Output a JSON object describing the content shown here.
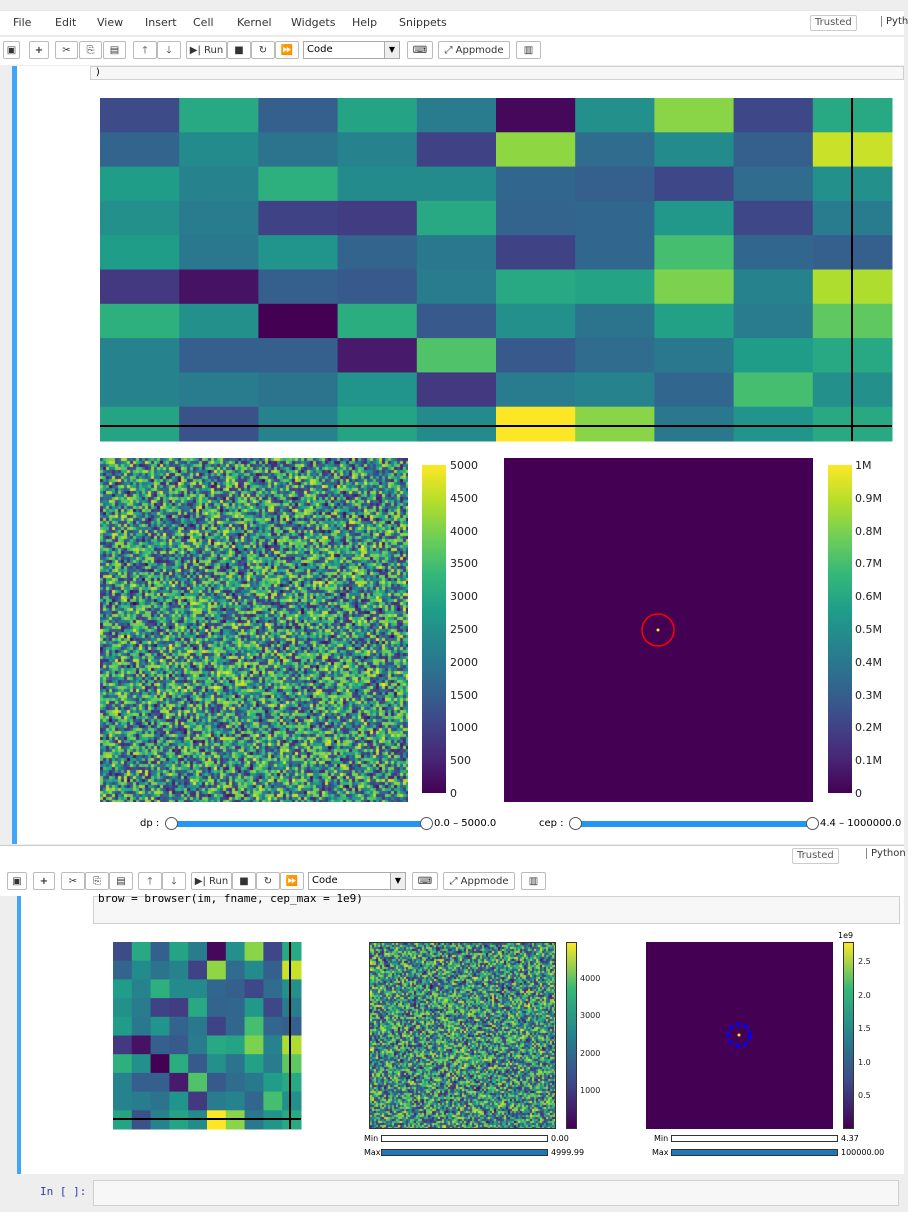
{
  "menubar": {
    "items": [
      "File",
      "Edit",
      "View",
      "Insert",
      "Cell",
      "Kernel",
      "Widgets",
      "Help",
      "Snippets"
    ],
    "trusted_label": "Trusted",
    "kernel_label": "Pyth"
  },
  "toolbar": {
    "run_label": "Run",
    "cell_type": "Code",
    "appmode_label": "Appmode"
  },
  "cell1": {
    "code_text": ")",
    "heatmap": {
      "rows": [
        [
          0.23,
          0.6,
          0.3,
          0.58,
          0.42,
          0.02,
          0.5,
          0.82,
          0.22,
          0.6
        ],
        [
          0.32,
          0.48,
          0.38,
          0.45,
          0.2,
          0.83,
          0.35,
          0.48,
          0.3,
          0.92
        ],
        [
          0.55,
          0.45,
          0.63,
          0.48,
          0.48,
          0.33,
          0.3,
          0.22,
          0.35,
          0.5
        ],
        [
          0.5,
          0.42,
          0.2,
          0.18,
          0.6,
          0.32,
          0.33,
          0.53,
          0.22,
          0.42
        ],
        [
          0.55,
          0.4,
          0.52,
          0.32,
          0.4,
          0.2,
          0.33,
          0.7,
          0.33,
          0.3
        ],
        [
          0.17,
          0.05,
          0.3,
          0.28,
          0.42,
          0.6,
          0.58,
          0.8,
          0.45,
          0.88
        ],
        [
          0.63,
          0.5,
          0.0,
          0.62,
          0.28,
          0.5,
          0.38,
          0.57,
          0.42,
          0.75
        ],
        [
          0.45,
          0.3,
          0.3,
          0.07,
          0.72,
          0.28,
          0.35,
          0.4,
          0.55,
          0.6
        ],
        [
          0.45,
          0.42,
          0.38,
          0.52,
          0.17,
          0.42,
          0.45,
          0.33,
          0.7,
          0.5
        ],
        [
          0.58,
          0.25,
          0.45,
          0.58,
          0.48,
          1.0,
          0.82,
          0.4,
          0.52,
          0.6
        ]
      ]
    },
    "dp_colorbar_ticks": [
      "5000",
      "4500",
      "4000",
      "3500",
      "3000",
      "2500",
      "2000",
      "1500",
      "1000",
      "500",
      "0"
    ],
    "cep_colorbar_ticks": [
      "1M",
      "0.9M",
      "0.8M",
      "0.7M",
      "0.6M",
      "0.5M",
      "0.4M",
      "0.3M",
      "0.2M",
      "0.1M",
      "0"
    ],
    "dp_slider": {
      "label": "dp :",
      "readout": "0.0 – 5000.0"
    },
    "cep_slider": {
      "label": "cep :",
      "readout": "4.4 – 1000000.0"
    },
    "highlight_color": "#ff0000"
  },
  "toolbar2": {
    "run_label": "Run",
    "cell_type": "Code",
    "appmode_label": "Appmode",
    "trusted_label": "Trusted",
    "kernel_label": "Python"
  },
  "cell2": {
    "code_text": "brow = browser(im, fname, cep_max = 1e9)",
    "dp_colorbar_ticks": [
      "4000",
      "3000",
      "2000",
      "1000"
    ],
    "cep_colorbar_ticks": [
      "2.5",
      "2.0",
      "1.5",
      "1.0",
      "0.5"
    ],
    "cep_colorbar_exponent": "1e9",
    "dp_min": {
      "label": "Min",
      "value": "0.00"
    },
    "dp_max": {
      "label": "Max",
      "value": "4999.99"
    },
    "cep_min": {
      "label": "Min",
      "value": "4.37"
    },
    "cep_max": {
      "label": "Max",
      "value": "100000.00"
    },
    "highlight_color": "#0000ff"
  },
  "prompt": {
    "label": "In [ ]:"
  },
  "colors": {
    "accent": "#42a5f5",
    "slider": "#2196f3",
    "viridis_dark": "#440154",
    "viridis_yellow": "#fde725"
  }
}
